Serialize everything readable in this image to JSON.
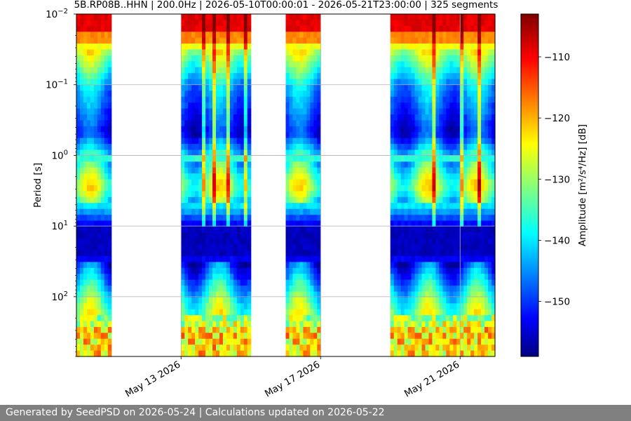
{
  "chart_data": {
    "type": "heatmap",
    "title": "5B.RP08B..HHN | 200.0Hz | 2026-05-10T00:00:01 - 2026-05-21T23:00:00 | 325 segments",
    "xlabel": "",
    "ylabel": "Period [s]",
    "x_ticks": [
      "May 13 2026",
      "May 17 2026",
      "May 21 2026"
    ],
    "x_tick_dates": [
      "2026-05-13",
      "2026-05-17",
      "2026-05-21"
    ],
    "x_range": [
      "2026-05-10",
      "2026-05-22T00:00"
    ],
    "y_scale": "log",
    "y_ticks": [
      "10^-2",
      "10^-1",
      "10^0",
      "10^1",
      "10^2"
    ],
    "y_tick_base": [
      "10",
      "10",
      "10",
      "10",
      "10"
    ],
    "y_tick_exp": [
      "−2",
      "−1",
      "0",
      "1",
      "2"
    ],
    "y_range": [
      0.01,
      700
    ],
    "y_inverted": true,
    "grid": true,
    "data_segments": [
      {
        "start": "2026-05-10",
        "end": "2026-05-11"
      },
      {
        "start": "2026-05-13",
        "end": "2026-05-15"
      },
      {
        "start": "2026-05-16",
        "end": "2026-05-17"
      },
      {
        "start": "2026-05-19",
        "end": "2026-05-22"
      }
    ],
    "colorbar": {
      "label": "Amplitude [m²/s⁴/Hz] [dB]",
      "range": [
        -159,
        -103
      ],
      "ticks": [
        "−110",
        "−120",
        "−130",
        "−140",
        "−150"
      ],
      "tick_values": [
        -110,
        -120,
        -130,
        -140,
        -150
      ],
      "colormap": "jet"
    }
  },
  "footer": {
    "text": "Generated by SeedPSD on 2026-05-24 | Calculations updated on 2026-05-22"
  }
}
